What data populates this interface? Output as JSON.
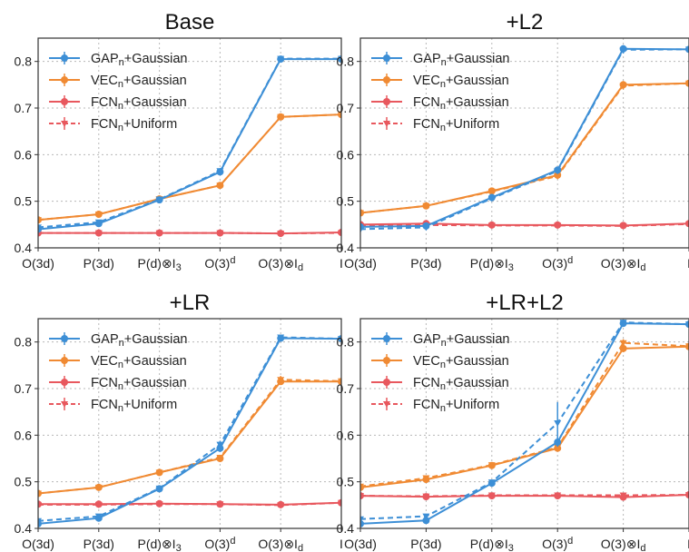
{
  "colors": {
    "gap": "#3d8fd6",
    "vec": "#f08a33",
    "fcn": "#e8585e",
    "grid": "#b8b8b8",
    "axis": "#333333"
  },
  "chart_data": [
    {
      "type": "line",
      "title": "Base",
      "categories": [
        "O(3d)",
        "P(3d)",
        "P(d)⊗I3",
        "O(3)d",
        "O(3)⊗Id",
        "I"
      ],
      "ylim": [
        0.4,
        0.85
      ],
      "yticks": [
        0.4,
        0.5,
        0.6,
        0.7,
        0.8
      ],
      "legend": "top-left",
      "series": [
        {
          "name": "GAPn+Gaussian",
          "color": "gap",
          "dashed": false,
          "marker": "o",
          "values": [
            0.44,
            0.452,
            0.503,
            0.563,
            0.805,
            0.805
          ],
          "err": [
            0.004,
            0.004,
            0.004,
            0.006,
            0.004,
            0.003
          ]
        },
        {
          "name": "VECn+Gaussian",
          "color": "vec",
          "dashed": false,
          "marker": "o",
          "values": [
            0.46,
            0.472,
            0.505,
            0.534,
            0.681,
            0.686
          ],
          "err": [
            0.004,
            0.004,
            0.004,
            0.004,
            0.004,
            0.006
          ]
        },
        {
          "name": "FCNn+Gaussian",
          "color": "fcn",
          "dashed": false,
          "marker": "o",
          "values": [
            0.432,
            0.432,
            0.432,
            0.432,
            0.431,
            0.433
          ],
          "err": [
            0.003,
            0.003,
            0.003,
            0.003,
            0.003,
            0.003
          ]
        },
        {
          "name": "FCNn+Uniform",
          "color": "fcn",
          "dashed": true,
          "marker": "v",
          "values": [
            0.432,
            0.432,
            0.432,
            0.432,
            0.431,
            0.432
          ],
          "err": [
            0.003,
            0.003,
            0.003,
            0.003,
            0.003,
            0.003
          ]
        },
        {
          "name": "",
          "color": "gap",
          "dashed": true,
          "marker": "v",
          "values": [
            0.444,
            0.455,
            0.504,
            0.565,
            0.806,
            0.806
          ],
          "err": [
            0.004,
            0.004,
            0.004,
            0.006,
            0.004,
            0.003
          ]
        },
        {
          "name": "",
          "color": "vec",
          "dashed": true,
          "marker": "v",
          "values": [
            0.46,
            0.472,
            0.505,
            0.534,
            0.681,
            0.686
          ],
          "err": [
            0.004,
            0.004,
            0.004,
            0.004,
            0.004,
            0.006
          ]
        }
      ]
    },
    {
      "type": "line",
      "title": "+L2",
      "categories": [
        "O(3d)",
        "P(3d)",
        "P(d)⊗I3",
        "O(3)d",
        "O(3)⊗Id",
        "I"
      ],
      "ylim": [
        0.4,
        0.85
      ],
      "yticks": [
        0.4,
        0.5,
        0.6,
        0.7,
        0.8
      ],
      "legend": "top-left",
      "series": [
        {
          "name": "GAPn+Gaussian",
          "color": "gap",
          "dashed": false,
          "marker": "o",
          "values": [
            0.445,
            0.447,
            0.508,
            0.567,
            0.827,
            0.826
          ],
          "err": [
            0.006,
            0.006,
            0.004,
            0.006,
            0.008,
            0.003
          ]
        },
        {
          "name": "VECn+Gaussian",
          "color": "vec",
          "dashed": false,
          "marker": "o",
          "values": [
            0.475,
            0.49,
            0.522,
            0.556,
            0.75,
            0.753
          ],
          "err": [
            0.004,
            0.004,
            0.004,
            0.006,
            0.008,
            0.003
          ]
        },
        {
          "name": "FCNn+Gaussian",
          "color": "fcn",
          "dashed": false,
          "marker": "o",
          "values": [
            0.45,
            0.452,
            0.449,
            0.449,
            0.448,
            0.452
          ],
          "err": [
            0.004,
            0.004,
            0.004,
            0.004,
            0.004,
            0.003
          ]
        },
        {
          "name": "FCNn+Uniform",
          "color": "fcn",
          "dashed": true,
          "marker": "v",
          "values": [
            0.447,
            0.449,
            0.448,
            0.448,
            0.447,
            0.451
          ],
          "err": [
            0.004,
            0.004,
            0.004,
            0.004,
            0.004,
            0.003
          ]
        },
        {
          "name": "",
          "color": "gap",
          "dashed": true,
          "marker": "v",
          "values": [
            0.44,
            0.444,
            0.506,
            0.565,
            0.825,
            0.826
          ],
          "err": [
            0.006,
            0.006,
            0.004,
            0.006,
            0.008,
            0.003
          ]
        },
        {
          "name": "",
          "color": "vec",
          "dashed": true,
          "marker": "v",
          "values": [
            0.475,
            0.49,
            0.521,
            0.554,
            0.748,
            0.753
          ],
          "err": [
            0.004,
            0.004,
            0.004,
            0.006,
            0.008,
            0.003
          ]
        }
      ]
    },
    {
      "type": "line",
      "title": "+LR",
      "categories": [
        "O(3d)",
        "P(3d)",
        "P(d)⊗I3",
        "O(3)d",
        "O(3)⊗Id",
        "I"
      ],
      "ylim": [
        0.4,
        0.85
      ],
      "yticks": [
        0.4,
        0.5,
        0.6,
        0.7,
        0.8
      ],
      "legend": "top-left",
      "series": [
        {
          "name": "GAPn+Gaussian",
          "color": "gap",
          "dashed": false,
          "marker": "o",
          "values": [
            0.41,
            0.422,
            0.485,
            0.572,
            0.808,
            0.807
          ],
          "err": [
            0.004,
            0.004,
            0.004,
            0.008,
            0.004,
            0.003
          ]
        },
        {
          "name": "VECn+Gaussian",
          "color": "vec",
          "dashed": false,
          "marker": "o",
          "values": [
            0.475,
            0.488,
            0.52,
            0.55,
            0.715,
            0.715
          ],
          "err": [
            0.004,
            0.004,
            0.004,
            0.006,
            0.006,
            0.003
          ]
        },
        {
          "name": "FCNn+Gaussian",
          "color": "fcn",
          "dashed": false,
          "marker": "o",
          "values": [
            0.452,
            0.452,
            0.453,
            0.452,
            0.451,
            0.455
          ],
          "err": [
            0.003,
            0.003,
            0.003,
            0.003,
            0.003,
            0.003
          ]
        },
        {
          "name": "FCNn+Uniform",
          "color": "fcn",
          "dashed": true,
          "marker": "v",
          "values": [
            0.451,
            0.451,
            0.452,
            0.452,
            0.45,
            0.455
          ],
          "err": [
            0.003,
            0.003,
            0.003,
            0.003,
            0.003,
            0.003
          ]
        },
        {
          "name": "",
          "color": "gap",
          "dashed": true,
          "marker": "v",
          "values": [
            0.416,
            0.426,
            0.486,
            0.58,
            0.81,
            0.807
          ],
          "err": [
            0.004,
            0.004,
            0.004,
            0.008,
            0.004,
            0.003
          ]
        },
        {
          "name": "",
          "color": "vec",
          "dashed": true,
          "marker": "v",
          "values": [
            0.475,
            0.488,
            0.52,
            0.552,
            0.719,
            0.716
          ],
          "err": [
            0.004,
            0.004,
            0.004,
            0.006,
            0.008,
            0.003
          ]
        }
      ]
    },
    {
      "type": "line",
      "title": "+LR+L2",
      "categories": [
        "O(3d)",
        "P(3d)",
        "P(d)⊗I3",
        "O(3)d",
        "O(3)⊗Id",
        "I"
      ],
      "ylim": [
        0.4,
        0.85
      ],
      "yticks": [
        0.4,
        0.5,
        0.6,
        0.7,
        0.8
      ],
      "legend": "top-left",
      "series": [
        {
          "name": "GAPn+Gaussian",
          "color": "gap",
          "dashed": false,
          "marker": "o",
          "values": [
            0.41,
            0.417,
            0.497,
            0.585,
            0.84,
            0.838
          ],
          "err": [
            0.004,
            0.004,
            0.004,
            0.01,
            0.006,
            0.003
          ]
        },
        {
          "name": "VECn+Gaussian",
          "color": "vec",
          "dashed": false,
          "marker": "o",
          "values": [
            0.488,
            0.505,
            0.535,
            0.572,
            0.786,
            0.79
          ],
          "err": [
            0.004,
            0.004,
            0.004,
            0.006,
            0.008,
            0.003
          ]
        },
        {
          "name": "FCNn+Gaussian",
          "color": "fcn",
          "dashed": false,
          "marker": "o",
          "values": [
            0.47,
            0.468,
            0.47,
            0.47,
            0.467,
            0.472
          ],
          "err": [
            0.003,
            0.003,
            0.003,
            0.003,
            0.003,
            0.003
          ]
        },
        {
          "name": "FCNn+Uniform",
          "color": "fcn",
          "dashed": true,
          "marker": "v",
          "values": [
            0.47,
            0.469,
            0.471,
            0.471,
            0.471,
            0.472
          ],
          "err": [
            0.003,
            0.003,
            0.003,
            0.003,
            0.006,
            0.003
          ]
        },
        {
          "name": "",
          "color": "gap",
          "dashed": true,
          "marker": "v",
          "values": [
            0.42,
            0.426,
            0.499,
            0.626,
            0.842,
            0.838
          ],
          "err": [
            0.004,
            0.004,
            0.004,
            0.045,
            0.006,
            0.003
          ]
        },
        {
          "name": "",
          "color": "vec",
          "dashed": true,
          "marker": "v",
          "values": [
            0.49,
            0.508,
            0.536,
            0.574,
            0.798,
            0.791
          ],
          "err": [
            0.004,
            0.004,
            0.004,
            0.006,
            0.008,
            0.003
          ]
        }
      ]
    }
  ]
}
